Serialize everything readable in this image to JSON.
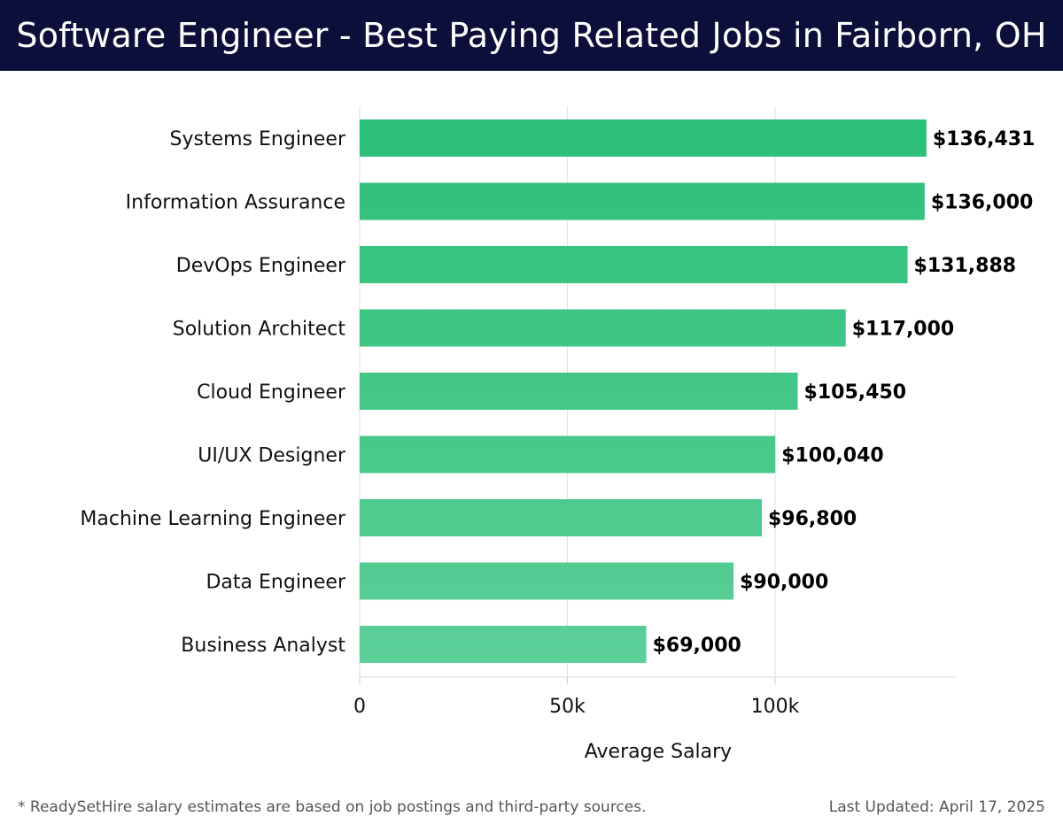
{
  "header": {
    "title": "Software Engineer - Best Paying Related Jobs in Fairborn, OH"
  },
  "footer": {
    "note": "* ReadySetHire salary estimates are based on job postings and third-party sources.",
    "updated": "Last Updated: April 17, 2025"
  },
  "colors": {
    "title_bg": "#0c0f3a",
    "bar_top": "#2bbf78",
    "bar_bottom": "#5ccf98"
  },
  "chart_data": {
    "type": "bar",
    "orientation": "horizontal",
    "title": "Software Engineer - Best Paying Related Jobs in Fairborn, OH",
    "xlabel": "Average Salary",
    "ylabel": "",
    "xlim": [
      0,
      143000
    ],
    "xticks": [
      0,
      50000,
      100000
    ],
    "xtick_labels": [
      "0",
      "50k",
      "100k"
    ],
    "grid": "vertical",
    "categories": [
      "Systems Engineer",
      "Information Assurance",
      "DevOps Engineer",
      "Solution Architect",
      "Cloud Engineer",
      "UI/UX Designer",
      "Machine Learning Engineer",
      "Data Engineer",
      "Business Analyst"
    ],
    "values": [
      136431,
      136000,
      131888,
      117000,
      105450,
      100040,
      96800,
      90000,
      69000
    ],
    "value_labels": [
      "$136,431",
      "$136,000",
      "$131,888",
      "$117,000",
      "$105,450",
      "$100,040",
      "$96,800",
      "$90,000",
      "$69,000"
    ]
  }
}
